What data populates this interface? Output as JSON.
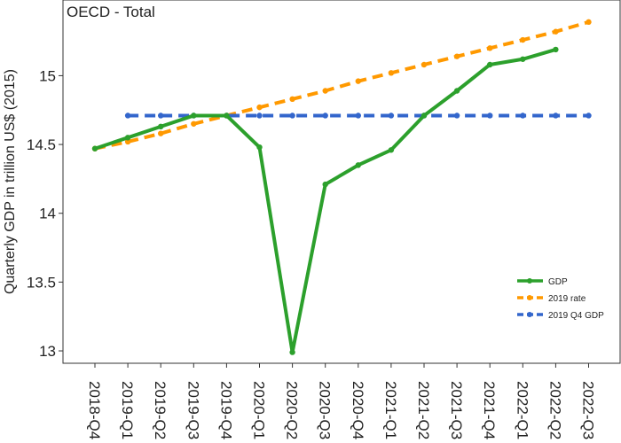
{
  "chart_data": {
    "type": "line",
    "title": "OECD - Total",
    "xlabel": "",
    "ylabel": "Quarterly GDP in trillion US$ (2015)",
    "categories": [
      "2018-Q4",
      "2019-Q1",
      "2019-Q2",
      "2019-Q3",
      "2019-Q4",
      "2020-Q1",
      "2020-Q2",
      "2020-Q3",
      "2020-Q4",
      "2021-Q1",
      "2021-Q2",
      "2021-Q3",
      "2021-Q4",
      "2022-Q1",
      "2022-Q2",
      "2022-Q3"
    ],
    "ylim": [
      12.91,
      15.55
    ],
    "yticks": [
      13,
      13.5,
      14,
      14.5,
      15
    ],
    "ytick_labels": [
      "13",
      "13.5",
      "14",
      "14.5",
      "15"
    ],
    "grid": false,
    "legend_position": "bottom-right",
    "series": [
      {
        "name": "GDP",
        "color": "#2ca02c",
        "dash": "solid",
        "values": [
          14.47,
          14.55,
          14.63,
          14.71,
          14.71,
          14.48,
          12.99,
          14.21,
          14.35,
          14.46,
          14.71,
          14.89,
          15.08,
          15.12,
          15.19,
          null
        ]
      },
      {
        "name": "2019 rate",
        "color": "#ff9900",
        "dash": "dash",
        "values": [
          14.47,
          14.52,
          14.58,
          14.65,
          14.71,
          14.77,
          14.83,
          14.89,
          14.96,
          15.02,
          15.08,
          15.14,
          15.2,
          15.26,
          15.32,
          15.39
        ]
      },
      {
        "name": "2019 Q4 GDP",
        "color": "#3366cc",
        "dash": "dash",
        "values": [
          null,
          14.71,
          14.71,
          14.71,
          14.71,
          14.71,
          14.71,
          14.71,
          14.71,
          14.71,
          14.71,
          14.71,
          14.71,
          14.71,
          14.71,
          14.71
        ]
      }
    ]
  }
}
